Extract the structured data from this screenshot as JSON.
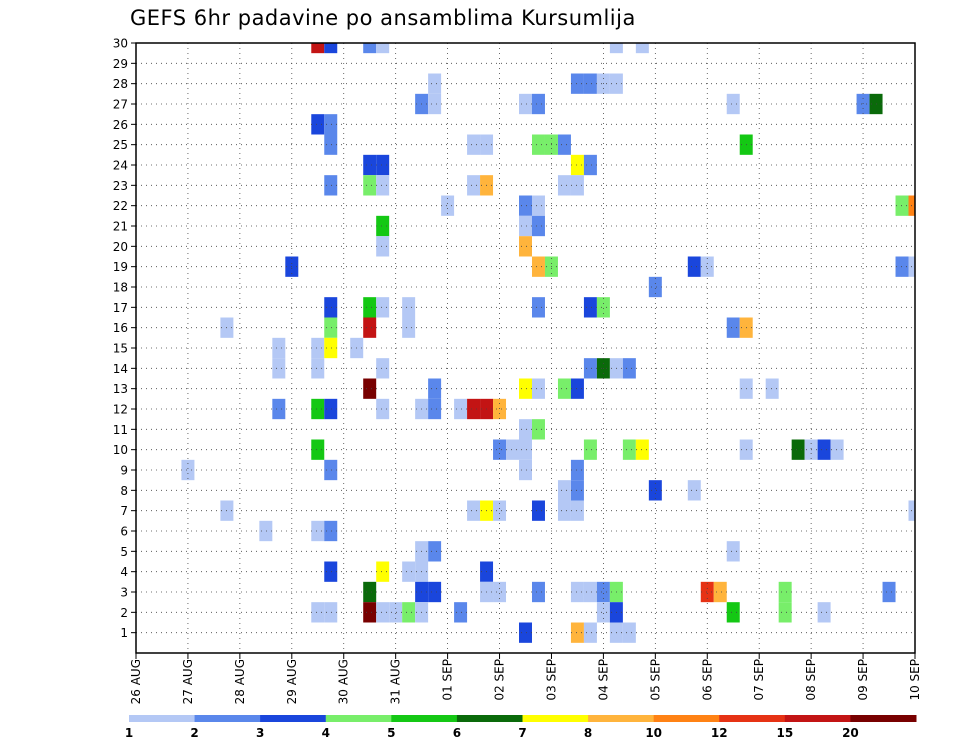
{
  "chart_data": {
    "type": "heatmap",
    "title": "GEFS 6hr padavine po ansamblima Kursumlija",
    "xlabel": "",
    "ylabel": "",
    "x_tick_labels": [
      "26 AUG",
      "27 AUG",
      "28 AUG",
      "29 AUG",
      "30 AUG",
      "31 AUG",
      "01 SEP",
      "02 SEP",
      "03 SEP",
      "04 SEP",
      "05 SEP",
      "06 SEP",
      "07 SEP",
      "08 SEP",
      "09 SEP",
      "10 SEP"
    ],
    "y_tick_labels": [
      "1",
      "2",
      "3",
      "4",
      "5",
      "6",
      "7",
      "8",
      "9",
      "10",
      "11",
      "12",
      "13",
      "14",
      "15",
      "16",
      "17",
      "18",
      "19",
      "20",
      "21",
      "22",
      "23",
      "24",
      "25",
      "26",
      "27",
      "28",
      "29",
      "30"
    ],
    "xlim": [
      0,
      60
    ],
    "ylim": [
      0,
      30
    ],
    "grid": true,
    "legend_position": "bottom",
    "color_scale": {
      "labels": [
        "1",
        "2",
        "3",
        "4",
        "5",
        "6",
        "7",
        "8",
        "10",
        "12",
        "15",
        "20"
      ],
      "colors": [
        "#b4c8f5",
        "#5a87eb",
        "#1a46dc",
        "#78ee6a",
        "#14c814",
        "#0a6a0a",
        "#ffff00",
        "#ffb43c",
        "#ff8214",
        "#e63214",
        "#c31414",
        "#780000"
      ]
    },
    "cells": [
      {
        "t": 14,
        "m": 30,
        "v": 15
      },
      {
        "t": 15,
        "m": 30,
        "v": 3
      },
      {
        "t": 18,
        "m": 30,
        "v": 2
      },
      {
        "t": 19,
        "m": 30,
        "v": 1
      },
      {
        "t": 37,
        "m": 30,
        "v": 1
      },
      {
        "t": 39,
        "m": 30,
        "v": 1
      },
      {
        "t": 23,
        "m": 28,
        "v": 1
      },
      {
        "t": 34,
        "m": 28,
        "v": 2
      },
      {
        "t": 35,
        "m": 28,
        "v": 2
      },
      {
        "t": 36,
        "m": 28,
        "v": 1
      },
      {
        "t": 37,
        "m": 28,
        "v": 1
      },
      {
        "t": 22,
        "m": 27,
        "v": 2
      },
      {
        "t": 23,
        "m": 27,
        "v": 1
      },
      {
        "t": 30,
        "m": 27,
        "v": 1
      },
      {
        "t": 31,
        "m": 27,
        "v": 2
      },
      {
        "t": 46,
        "m": 27,
        "v": 1
      },
      {
        "t": 56,
        "m": 27,
        "v": 2
      },
      {
        "t": 57,
        "m": 27,
        "v": 6
      },
      {
        "t": 14,
        "m": 26,
        "v": 3
      },
      {
        "t": 15,
        "m": 26,
        "v": 2
      },
      {
        "t": 15,
        "m": 25,
        "v": 2
      },
      {
        "t": 26,
        "m": 25,
        "v": 1
      },
      {
        "t": 27,
        "m": 25,
        "v": 1
      },
      {
        "t": 31,
        "m": 25,
        "v": 4
      },
      {
        "t": 32,
        "m": 25,
        "v": 4
      },
      {
        "t": 33,
        "m": 25,
        "v": 2
      },
      {
        "t": 47,
        "m": 25,
        "v": 5
      },
      {
        "t": 18,
        "m": 24,
        "v": 3
      },
      {
        "t": 19,
        "m": 24,
        "v": 3
      },
      {
        "t": 34,
        "m": 24,
        "v": 7
      },
      {
        "t": 35,
        "m": 24,
        "v": 2
      },
      {
        "t": 15,
        "m": 23,
        "v": 2
      },
      {
        "t": 18,
        "m": 23,
        "v": 4
      },
      {
        "t": 19,
        "m": 23,
        "v": 1
      },
      {
        "t": 26,
        "m": 23,
        "v": 1
      },
      {
        "t": 27,
        "m": 23,
        "v": 8
      },
      {
        "t": 33,
        "m": 23,
        "v": 1
      },
      {
        "t": 34,
        "m": 23,
        "v": 1
      },
      {
        "t": 24,
        "m": 22,
        "v": 1
      },
      {
        "t": 30,
        "m": 22,
        "v": 2
      },
      {
        "t": 31,
        "m": 22,
        "v": 1
      },
      {
        "t": 59,
        "m": 22,
        "v": 4
      },
      {
        "t": 60,
        "m": 22,
        "v": 10
      },
      {
        "t": 19,
        "m": 21,
        "v": 5
      },
      {
        "t": 30,
        "m": 21,
        "v": 1
      },
      {
        "t": 31,
        "m": 21,
        "v": 2
      },
      {
        "t": 19,
        "m": 20,
        "v": 1
      },
      {
        "t": 30,
        "m": 20,
        "v": 8
      },
      {
        "t": 12,
        "m": 19,
        "v": 3
      },
      {
        "t": 31,
        "m": 19,
        "v": 8
      },
      {
        "t": 32,
        "m": 19,
        "v": 4
      },
      {
        "t": 43,
        "m": 19,
        "v": 3
      },
      {
        "t": 44,
        "m": 19,
        "v": 1
      },
      {
        "t": 59,
        "m": 19,
        "v": 2
      },
      {
        "t": 60,
        "m": 19,
        "v": 1
      },
      {
        "t": 40,
        "m": 18,
        "v": 2
      },
      {
        "t": 15,
        "m": 17,
        "v": 3
      },
      {
        "t": 18,
        "m": 17,
        "v": 5
      },
      {
        "t": 19,
        "m": 17,
        "v": 1
      },
      {
        "t": 21,
        "m": 17,
        "v": 1
      },
      {
        "t": 31,
        "m": 17,
        "v": 2
      },
      {
        "t": 35,
        "m": 17,
        "v": 3
      },
      {
        "t": 36,
        "m": 17,
        "v": 4
      },
      {
        "t": 7,
        "m": 16,
        "v": 1
      },
      {
        "t": 15,
        "m": 16,
        "v": 4
      },
      {
        "t": 18,
        "m": 16,
        "v": 15
      },
      {
        "t": 21,
        "m": 16,
        "v": 1
      },
      {
        "t": 46,
        "m": 16,
        "v": 2
      },
      {
        "t": 47,
        "m": 16,
        "v": 8
      },
      {
        "t": 11,
        "m": 15,
        "v": 1
      },
      {
        "t": 14,
        "m": 15,
        "v": 1
      },
      {
        "t": 15,
        "m": 15,
        "v": 7
      },
      {
        "t": 17,
        "m": 15,
        "v": 1
      },
      {
        "t": 11,
        "m": 14,
        "v": 1
      },
      {
        "t": 14,
        "m": 14,
        "v": 1
      },
      {
        "t": 19,
        "m": 14,
        "v": 1
      },
      {
        "t": 35,
        "m": 14,
        "v": 2
      },
      {
        "t": 36,
        "m": 14,
        "v": 6
      },
      {
        "t": 37,
        "m": 14,
        "v": 1
      },
      {
        "t": 38,
        "m": 14,
        "v": 2
      },
      {
        "t": 18,
        "m": 13,
        "v": 20
      },
      {
        "t": 23,
        "m": 13,
        "v": 2
      },
      {
        "t": 30,
        "m": 13,
        "v": 7
      },
      {
        "t": 31,
        "m": 13,
        "v": 1
      },
      {
        "t": 33,
        "m": 13,
        "v": 4
      },
      {
        "t": 34,
        "m": 13,
        "v": 3
      },
      {
        "t": 47,
        "m": 13,
        "v": 1
      },
      {
        "t": 49,
        "m": 13,
        "v": 1
      },
      {
        "t": 11,
        "m": 12,
        "v": 2
      },
      {
        "t": 14,
        "m": 12,
        "v": 5
      },
      {
        "t": 15,
        "m": 12,
        "v": 3
      },
      {
        "t": 19,
        "m": 12,
        "v": 1
      },
      {
        "t": 22,
        "m": 12,
        "v": 1
      },
      {
        "t": 23,
        "m": 12,
        "v": 2
      },
      {
        "t": 25,
        "m": 12,
        "v": 1
      },
      {
        "t": 26,
        "m": 12,
        "v": 15
      },
      {
        "t": 27,
        "m": 12,
        "v": 15
      },
      {
        "t": 28,
        "m": 12,
        "v": 8
      },
      {
        "t": 30,
        "m": 11,
        "v": 1
      },
      {
        "t": 31,
        "m": 11,
        "v": 4
      },
      {
        "t": 14,
        "m": 10,
        "v": 5
      },
      {
        "t": 28,
        "m": 10,
        "v": 2
      },
      {
        "t": 29,
        "m": 10,
        "v": 1
      },
      {
        "t": 30,
        "m": 10,
        "v": 1
      },
      {
        "t": 35,
        "m": 10,
        "v": 4
      },
      {
        "t": 38,
        "m": 10,
        "v": 4
      },
      {
        "t": 39,
        "m": 10,
        "v": 7
      },
      {
        "t": 47,
        "m": 10,
        "v": 1
      },
      {
        "t": 51,
        "m": 10,
        "v": 6
      },
      {
        "t": 52,
        "m": 10,
        "v": 1
      },
      {
        "t": 53,
        "m": 10,
        "v": 3
      },
      {
        "t": 54,
        "m": 10,
        "v": 1
      },
      {
        "t": 4,
        "m": 9,
        "v": 1
      },
      {
        "t": 15,
        "m": 9,
        "v": 2
      },
      {
        "t": 30,
        "m": 9,
        "v": 1
      },
      {
        "t": 34,
        "m": 9,
        "v": 2
      },
      {
        "t": 34,
        "m": 8,
        "v": 2
      },
      {
        "t": 33,
        "m": 8,
        "v": 1
      },
      {
        "t": 40,
        "m": 8,
        "v": 3
      },
      {
        "t": 43,
        "m": 8,
        "v": 1
      },
      {
        "t": 7,
        "m": 7,
        "v": 1
      },
      {
        "t": 26,
        "m": 7,
        "v": 1
      },
      {
        "t": 27,
        "m": 7,
        "v": 7
      },
      {
        "t": 28,
        "m": 7,
        "v": 1
      },
      {
        "t": 31,
        "m": 7,
        "v": 3
      },
      {
        "t": 33,
        "m": 7,
        "v": 1
      },
      {
        "t": 34,
        "m": 7,
        "v": 1
      },
      {
        "t": 60,
        "m": 7,
        "v": 1
      },
      {
        "t": 10,
        "m": 6,
        "v": 1
      },
      {
        "t": 14,
        "m": 6,
        "v": 1
      },
      {
        "t": 15,
        "m": 6,
        "v": 2
      },
      {
        "t": 23,
        "m": 5,
        "v": 2
      },
      {
        "t": 22,
        "m": 5,
        "v": 1
      },
      {
        "t": 46,
        "m": 5,
        "v": 1
      },
      {
        "t": 15,
        "m": 4,
        "v": 3
      },
      {
        "t": 19,
        "m": 4,
        "v": 7
      },
      {
        "t": 21,
        "m": 4,
        "v": 1
      },
      {
        "t": 22,
        "m": 4,
        "v": 1
      },
      {
        "t": 27,
        "m": 4,
        "v": 3
      },
      {
        "t": 18,
        "m": 3,
        "v": 6
      },
      {
        "t": 22,
        "m": 3,
        "v": 3
      },
      {
        "t": 23,
        "m": 3,
        "v": 3
      },
      {
        "t": 27,
        "m": 3,
        "v": 1
      },
      {
        "t": 28,
        "m": 3,
        "v": 1
      },
      {
        "t": 31,
        "m": 3,
        "v": 2
      },
      {
        "t": 34,
        "m": 3,
        "v": 1
      },
      {
        "t": 35,
        "m": 3,
        "v": 1
      },
      {
        "t": 36,
        "m": 3,
        "v": 2
      },
      {
        "t": 37,
        "m": 3,
        "v": 4
      },
      {
        "t": 44,
        "m": 3,
        "v": 12
      },
      {
        "t": 45,
        "m": 3,
        "v": 8
      },
      {
        "t": 50,
        "m": 3,
        "v": 4
      },
      {
        "t": 58,
        "m": 3,
        "v": 2
      },
      {
        "t": 14,
        "m": 2,
        "v": 1
      },
      {
        "t": 15,
        "m": 2,
        "v": 1
      },
      {
        "t": 18,
        "m": 2,
        "v": 20
      },
      {
        "t": 19,
        "m": 2,
        "v": 1
      },
      {
        "t": 20,
        "m": 2,
        "v": 1
      },
      {
        "t": 21,
        "m": 2,
        "v": 4
      },
      {
        "t": 22,
        "m": 2,
        "v": 1
      },
      {
        "t": 25,
        "m": 2,
        "v": 2
      },
      {
        "t": 36,
        "m": 2,
        "v": 1
      },
      {
        "t": 37,
        "m": 2,
        "v": 3
      },
      {
        "t": 46,
        "m": 2,
        "v": 5
      },
      {
        "t": 50,
        "m": 2,
        "v": 4
      },
      {
        "t": 53,
        "m": 2,
        "v": 1
      },
      {
        "t": 30,
        "m": 1,
        "v": 3
      },
      {
        "t": 34,
        "m": 1,
        "v": 8
      },
      {
        "t": 35,
        "m": 1,
        "v": 1
      },
      {
        "t": 37,
        "m": 1,
        "v": 1
      },
      {
        "t": 38,
        "m": 1,
        "v": 1
      }
    ]
  }
}
